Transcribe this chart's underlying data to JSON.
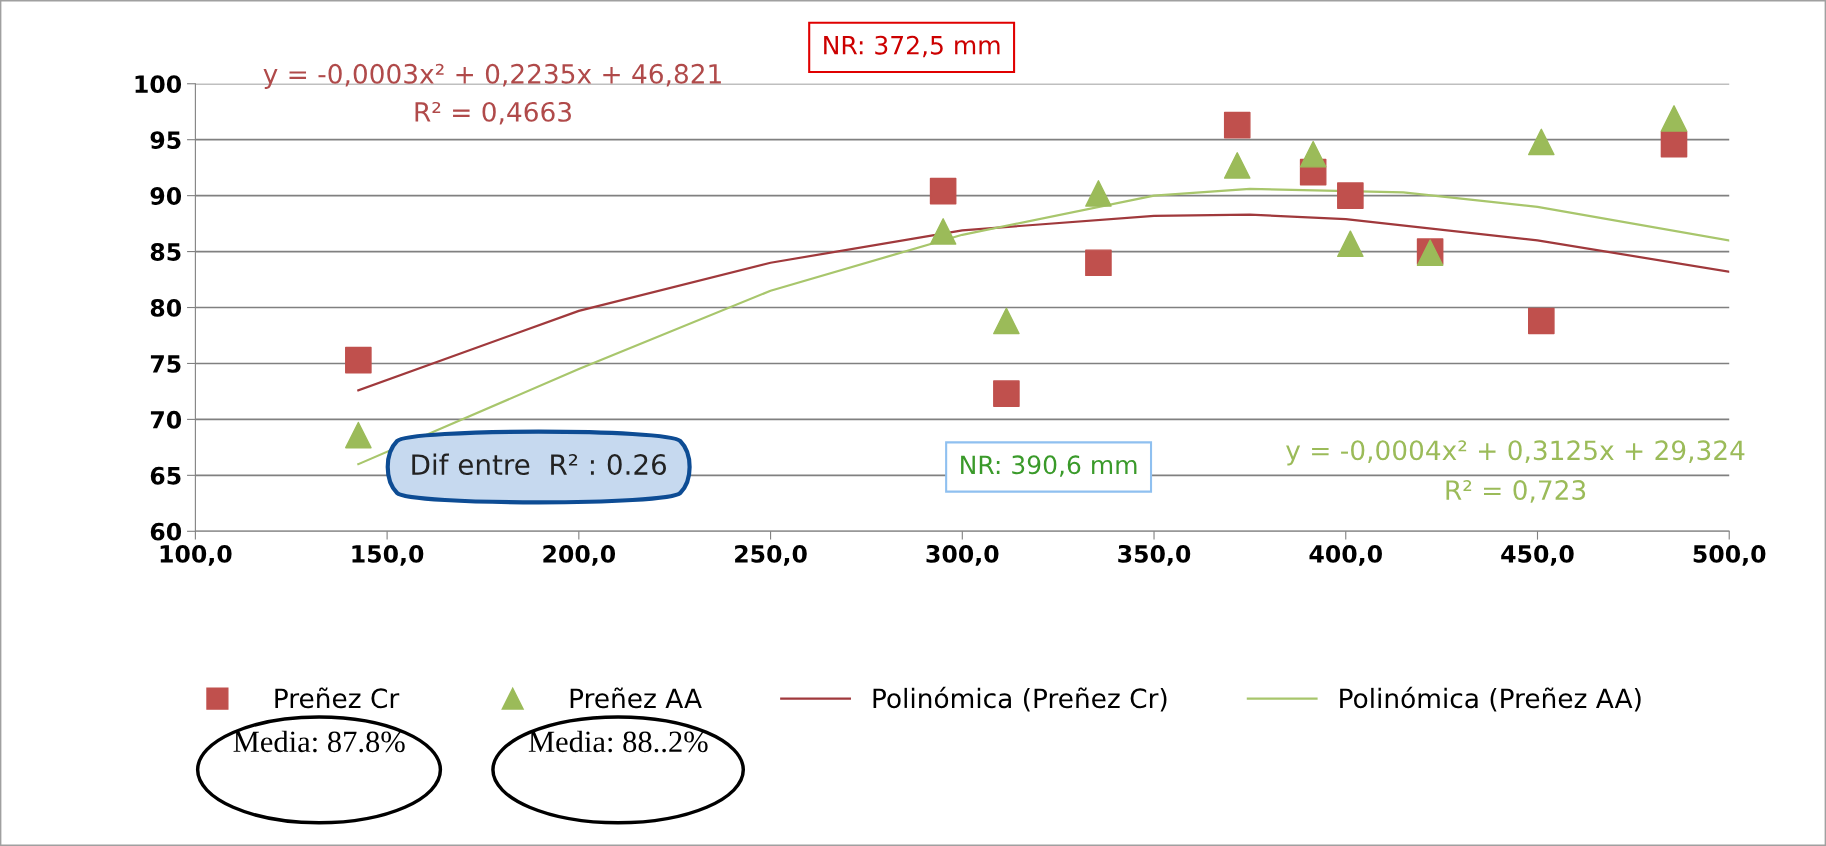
{
  "chart_data": {
    "type": "scatter",
    "xlim": [
      100,
      500
    ],
    "xticks": [
      {
        "value": 100,
        "label": "100,0"
      },
      {
        "value": 150,
        "label": "150,0"
      },
      {
        "value": 200,
        "label": "200,0"
      },
      {
        "value": 250,
        "label": "250,0"
      },
      {
        "value": 300,
        "label": "300,0"
      },
      {
        "value": 350,
        "label": "350,0"
      },
      {
        "value": 400,
        "label": "400,0"
      },
      {
        "value": 450,
        "label": "450,0"
      },
      {
        "value": 500,
        "label": "500,0"
      }
    ],
    "ylim": [
      60,
      100
    ],
    "yticks": [
      60,
      65,
      70,
      75,
      80,
      85,
      90,
      95,
      100
    ],
    "grid": "y",
    "legend": "bottom",
    "series": [
      {
        "name": "Preñez Cr",
        "marker": "square",
        "color": "#c0504d",
        "x": [
          142.5,
          295,
          311.5,
          335.5,
          371.7,
          391.5,
          401.2,
          422,
          451,
          485.6
        ],
        "values": [
          75.3,
          90.4,
          72.3,
          84.0,
          96.3,
          92.1,
          90.0,
          85.0,
          78.8,
          94.6
        ]
      },
      {
        "name": "Preñez AA",
        "marker": "triangle",
        "color": "#9bbb59",
        "x": [
          142.5,
          295,
          311.5,
          335.5,
          371.7,
          391.5,
          401.2,
          422,
          451,
          485.6
        ],
        "values": [
          68.6,
          86.8,
          78.8,
          90.2,
          92.7,
          93.7,
          85.7,
          84.9,
          94.8,
          96.9
        ]
      },
      {
        "name": "Polinómica (Preñez Cr)",
        "type": "line",
        "marker": "none",
        "color": "#a0393c",
        "x": [
          142.5,
          200,
          250,
          300,
          350,
          375,
          400,
          450,
          500
        ],
        "values": [
          72.6,
          79.7,
          84.0,
          86.9,
          88.2,
          88.3,
          87.9,
          86.0,
          83.2
        ]
      },
      {
        "name": "Polinómica (Preñez AA)",
        "type": "line",
        "marker": "none",
        "color": "#a8c66c",
        "x": [
          142.5,
          200,
          250,
          300,
          350,
          375,
          415,
          450,
          500
        ],
        "values": [
          66.0,
          74.5,
          81.5,
          86.5,
          90.0,
          90.6,
          90.3,
          89.0,
          86.0
        ]
      }
    ],
    "annotations": [
      "y = -0,0003x² + 0,2235x + 46,821",
      "R² = 0,4663",
      "y = -0,0004x² + 0,3125x + 29,324",
      "R² = 0,723",
      "NR: 372,5 mm",
      "NR: 390,6 mm",
      "Dif entre  R² : 0.26",
      "Media: 87.8%",
      "Media: 88..2%"
    ]
  }
}
